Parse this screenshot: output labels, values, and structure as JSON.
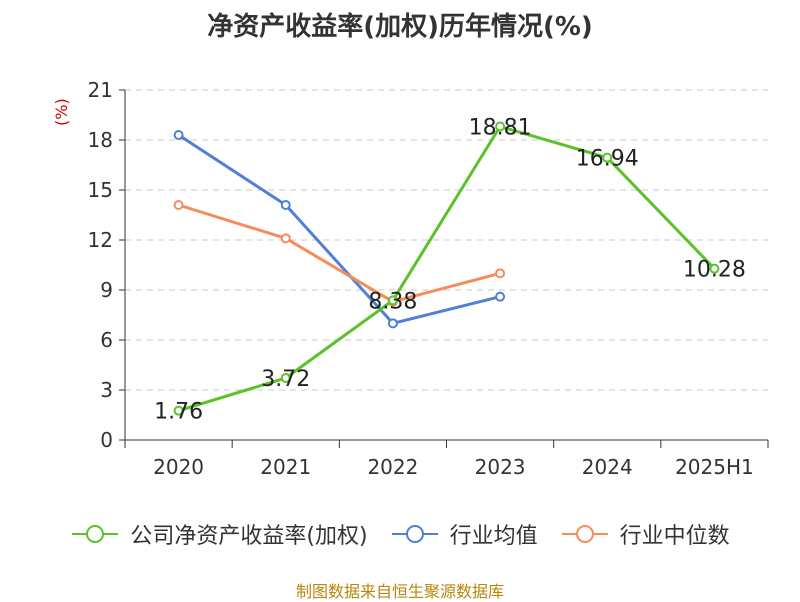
{
  "title": "净资产收益率(加权)历年情况(%)",
  "unit_label": "(%)",
  "source": "制图数据来自恒生聚源数据库",
  "chart_data": {
    "type": "line",
    "categories": [
      "2020",
      "2021",
      "2022",
      "2023",
      "2024",
      "2025H1"
    ],
    "ylim": [
      0,
      21
    ],
    "yticks": [
      0,
      3,
      6,
      9,
      12,
      15,
      18,
      21
    ],
    "grid": true,
    "legend_position": "bottom",
    "series": [
      {
        "name": "公司净资产收益率(加权)",
        "color": "#5bc22a",
        "values": [
          1.76,
          3.72,
          8.38,
          18.81,
          16.94,
          10.28
        ],
        "labels": [
          "1.76",
          "3.72",
          "8.38",
          "18.81",
          "16.94",
          "10.28"
        ]
      },
      {
        "name": "行业均值",
        "color": "#4f7fd8",
        "values": [
          18.3,
          14.1,
          7.0,
          8.6,
          null,
          null
        ]
      },
      {
        "name": "行业中位数",
        "color": "#f58c5a",
        "values": [
          14.1,
          12.1,
          8.3,
          10.0,
          null,
          null
        ]
      }
    ]
  }
}
